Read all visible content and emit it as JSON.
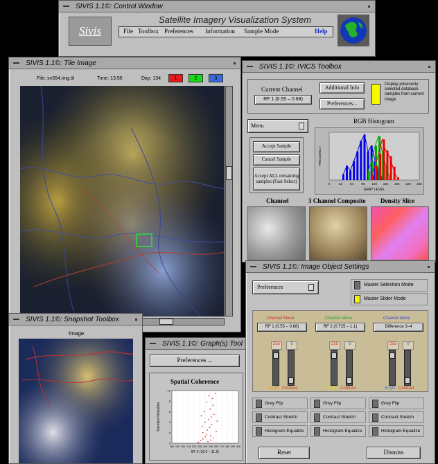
{
  "control": {
    "title": "SIVIS 1.1©: Control Window",
    "logo": "Sivis",
    "subtitle": "Satellite Imagery Visualization System",
    "menu": [
      "File",
      "Toolbox",
      "Preferences",
      "Information",
      "Sample Mode"
    ],
    "help": "Help"
  },
  "tile": {
    "title": "SIVIS 1.1©: Tile Image",
    "file_label": "File: sv354.img.til",
    "time_label": "Time: 13.56",
    "day_label": "Day: 134",
    "channels": [
      {
        "label": "1",
        "color": "#e81818"
      },
      {
        "label": "2",
        "color": "#18d818"
      },
      {
        "label": "3",
        "color": "#3a6ad8"
      }
    ]
  },
  "ivics": {
    "title": "SIVIS 1.1©: IVICS Toolbox",
    "current_channel_label": "Current Channel",
    "channel_value": "RF 1 (0.55 – 0.68)",
    "additional_info": "Additional Info",
    "preferences": "Preferences...",
    "note": "Display previously selected database samples from current image",
    "menu": "Menu",
    "accept_sample": "Accept Sample",
    "cancel_sample": "Cancel Sample",
    "accept_all": "Accept ALL remaining samples (Fast Select)",
    "histogram_title": "RGB Histogram",
    "panel_labels": [
      "Channel",
      "3 Channel Composite",
      "Density Slice"
    ]
  },
  "histogram_chart": {
    "type": "area",
    "title": "RGB Histogram",
    "xlabel": "GRAY LEVEL",
    "ylabel": "FREQUENCY",
    "x_ticks": [
      "0",
      "32",
      "64",
      "96",
      "128",
      "160",
      "192",
      "224",
      "255"
    ],
    "xlim": [
      0,
      255
    ],
    "ylim": [
      0,
      100
    ],
    "series": [
      {
        "color": "#0000ee",
        "x": [
          40,
          50,
          60,
          70,
          80,
          90,
          100,
          110,
          120,
          130,
          140,
          150
        ],
        "y": [
          12,
          30,
          20,
          40,
          60,
          82,
          95,
          60,
          72,
          40,
          20,
          4
        ]
      },
      {
        "color": "#00aa00",
        "x": [
          110,
          120,
          130,
          140,
          150,
          160,
          170
        ],
        "y": [
          18,
          40,
          72,
          92,
          60,
          30,
          8
        ]
      },
      {
        "color": "#ee0000",
        "x": [
          120,
          130,
          140,
          150,
          160,
          170,
          180,
          190
        ],
        "y": [
          10,
          30,
          55,
          85,
          62,
          50,
          28,
          6
        ]
      }
    ]
  },
  "snapshot": {
    "title": "SIVIS 1.1©: Snapshot Toolbox",
    "image_label": "Image"
  },
  "graph": {
    "title": "SIVIS 1.1©: Graph(s) Tool",
    "preferences": "Preferences ...",
    "chart_title": "Spatial Coherence"
  },
  "chart_data": {
    "type": "scatter",
    "title": "Spatial Coherence",
    "xlabel": "BT 4 (10.5 – 11.5)",
    "ylabel": "Standard Deviation",
    "x_ticks": [
      "180",
      "190",
      "200",
      "210",
      "220",
      "230",
      "240",
      "250",
      "260",
      "270",
      "280",
      "290",
      "300"
    ],
    "y_ticks": [
      "0",
      "2",
      "4",
      "6",
      "8",
      "10"
    ],
    "xlim": [
      180,
      300
    ],
    "ylim": [
      0,
      10
    ],
    "points": [
      [
        228,
        0.2
      ],
      [
        232,
        0.5
      ],
      [
        236,
        0.8
      ],
      [
        240,
        1.2
      ],
      [
        245,
        0.3
      ],
      [
        250,
        0.6
      ],
      [
        255,
        1.0
      ],
      [
        236,
        2.0
      ],
      [
        244,
        2.5
      ],
      [
        248,
        3.0
      ],
      [
        252,
        3.5
      ],
      [
        240,
        4.0
      ],
      [
        246,
        4.5
      ],
      [
        251,
        5.0
      ],
      [
        256,
        5.5
      ],
      [
        238,
        6.0
      ],
      [
        249,
        6.5
      ],
      [
        254,
        7.2
      ],
      [
        243,
        7.8
      ],
      [
        253,
        8.5
      ],
      [
        247,
        9.0
      ],
      [
        258,
        9.5
      ],
      [
        235,
        3.2
      ],
      [
        260,
        2.2
      ],
      [
        262,
        4.2
      ],
      [
        242,
        1.6
      ],
      [
        250,
        1.4
      ],
      [
        233,
        5.2
      ]
    ]
  },
  "settings": {
    "title": "SIVIS 1.1©: Image Object Settings",
    "preferences": "Preferences",
    "master_selection": "Master Selection Mode",
    "master_slider": "Master Slider Mode",
    "channels": [
      {
        "menu": "Channel Menu",
        "menu_color": "#cc2222",
        "value": "RF 1 (0.55 – 0.68)",
        "bright": "255",
        "contrast": "0",
        "bright_val": 0.94,
        "contrast_val": 0.1,
        "bright_label_color": "#e2a030"
      },
      {
        "menu": "Channel Menu",
        "menu_color": "#229922",
        "value": "RF 2 (0.725 – 1.1)",
        "bright": "255",
        "contrast": "0",
        "bright_val": 0.94,
        "contrast_val": 0.1,
        "bright_label_color": "#d8d830"
      },
      {
        "menu": "Channel Menu",
        "menu_color": "#3344cc",
        "value": "Difference 3–4",
        "bright": "255",
        "contrast": "0",
        "bright_val": 0.94,
        "contrast_val": 0.1,
        "bright_label_color": "#4a70d0"
      }
    ],
    "bright_label": "Bright",
    "contrast_label": "Contrast",
    "toggles": [
      "Grey Flip",
      "Contrast Stretch",
      "Histogram Equalize"
    ],
    "reset": "Reset",
    "dismiss": "Dismiss"
  }
}
